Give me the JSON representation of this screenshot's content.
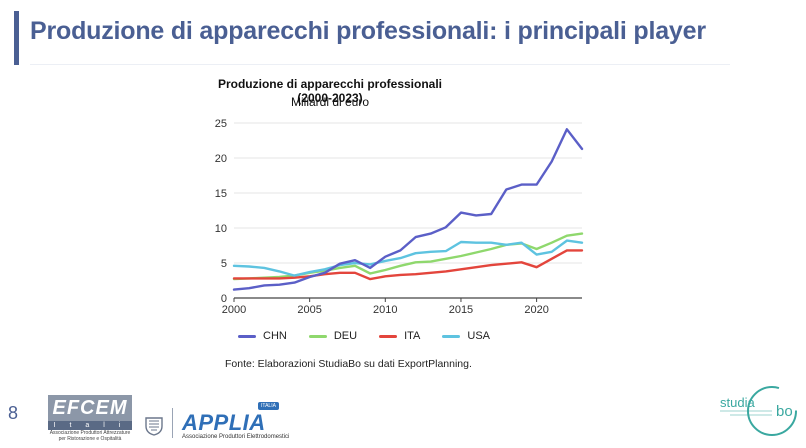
{
  "page": {
    "title": "Produzione di apparecchi professionali: i principali player",
    "page_number": "8",
    "source": "Fonte: Elaborazioni StudiaBo su dati ExportPlanning."
  },
  "logos": {
    "efcem": {
      "word": "EFCEM",
      "sub": "I t a l i a",
      "tagline": "Associazione Produttori Attrezzature per Ristorazione e Ospitalità"
    },
    "applia": {
      "word": "APPLIA",
      "badge": "ITALIA",
      "tagline": "Associazione Produttori Elettrodomestici"
    },
    "studiabo": {
      "word_a": "studia",
      "word_b": "bo"
    }
  },
  "colors": {
    "title": "#4a5f93",
    "CHN": "#5b5fc7",
    "DEU": "#8fd86d",
    "ITA": "#e3453c",
    "USA": "#5ec3e0",
    "grid": "#e6e6e6",
    "axis": "#444444"
  },
  "chart_data": {
    "type": "line",
    "title": "Produzione di apparecchi professionali (2000-2023)",
    "subtitle": "Miliardi di euro",
    "x": [
      2000,
      2001,
      2002,
      2003,
      2004,
      2005,
      2006,
      2007,
      2008,
      2009,
      2010,
      2011,
      2012,
      2013,
      2014,
      2015,
      2016,
      2017,
      2018,
      2019,
      2020,
      2021,
      2022,
      2023
    ],
    "xlim": [
      2000,
      2023
    ],
    "x_ticks": [
      2000,
      2005,
      2010,
      2015,
      2020
    ],
    "ylim": [
      0,
      25
    ],
    "y_ticks": [
      0,
      5,
      10,
      15,
      20,
      25
    ],
    "grid": "horizontal",
    "legend_position": "bottom",
    "series": [
      {
        "name": "CHN",
        "values": [
          1.2,
          1.4,
          1.8,
          1.9,
          2.2,
          3.0,
          3.6,
          4.9,
          5.4,
          4.3,
          5.9,
          6.8,
          8.7,
          9.2,
          10.1,
          12.2,
          11.8,
          12.0,
          15.5,
          16.2,
          16.2,
          19.5,
          24.1,
          21.3
        ]
      },
      {
        "name": "DEU",
        "values": [
          2.7,
          2.8,
          2.9,
          3.0,
          3.2,
          3.6,
          3.9,
          4.3,
          4.6,
          3.5,
          4.0,
          4.6,
          5.1,
          5.2,
          5.6,
          6.0,
          6.5,
          7.0,
          7.6,
          7.8,
          7.0,
          7.9,
          8.9,
          9.2
        ]
      },
      {
        "name": "ITA",
        "values": [
          2.8,
          2.8,
          2.8,
          2.8,
          2.9,
          3.1,
          3.4,
          3.6,
          3.6,
          2.7,
          3.1,
          3.3,
          3.4,
          3.6,
          3.8,
          4.1,
          4.4,
          4.7,
          4.9,
          5.1,
          4.4,
          5.6,
          6.8,
          6.8
        ]
      },
      {
        "name": "USA",
        "values": [
          4.6,
          4.5,
          4.3,
          3.8,
          3.2,
          3.7,
          4.1,
          4.7,
          5.0,
          4.8,
          5.3,
          5.7,
          6.4,
          6.6,
          6.7,
          8.0,
          7.9,
          7.9,
          7.6,
          7.9,
          6.2,
          6.6,
          8.2,
          7.9
        ]
      }
    ]
  }
}
